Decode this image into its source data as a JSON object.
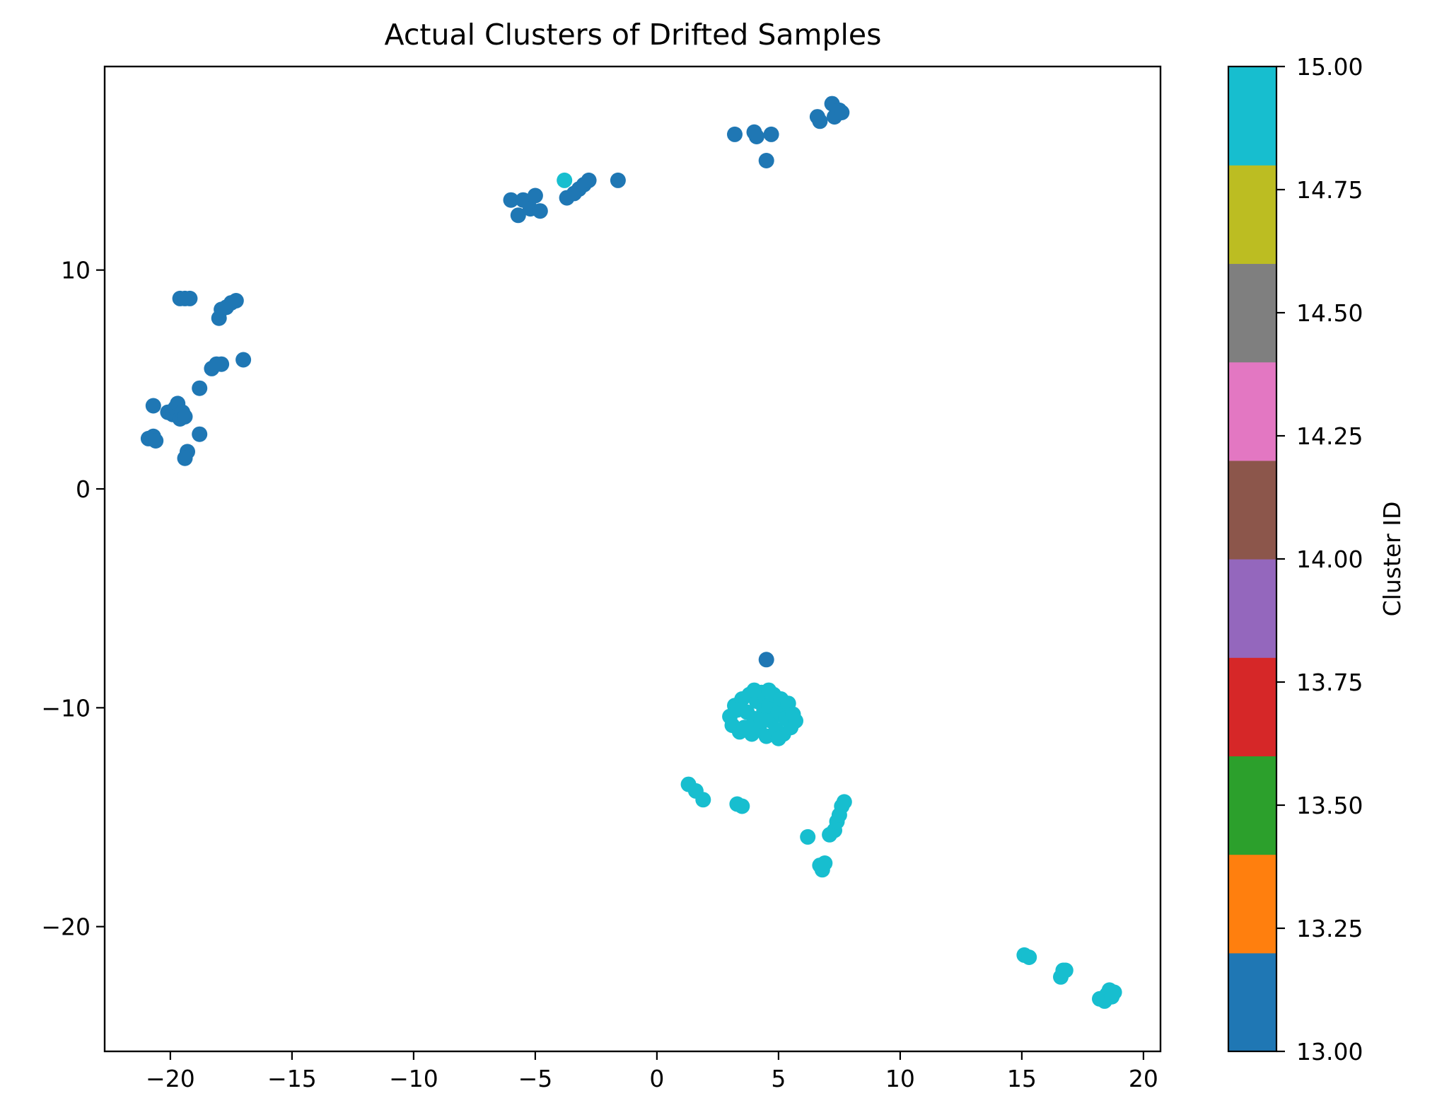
{
  "chart_data": {
    "type": "scatter",
    "title": "Actual Clusters of Drifted Samples",
    "xlabel": "",
    "ylabel": "",
    "xlim": [
      -22.7,
      20.7
    ],
    "ylim": [
      -25.7,
      19.3
    ],
    "xticks": [
      -20,
      -15,
      -10,
      -5,
      0,
      5,
      10,
      15,
      20
    ],
    "xtick_labels": [
      "−20",
      "−15",
      "−10",
      "−5",
      "0",
      "5",
      "10",
      "15",
      "20"
    ],
    "yticks": [
      -20,
      -10,
      0,
      10
    ],
    "ytick_labels": [
      "−20",
      "−10",
      "0",
      "10"
    ],
    "grid": false,
    "colorbar": {
      "label": "Cluster ID",
      "range": [
        13.0,
        15.0
      ],
      "colormap": "tab10",
      "colors": [
        "#1f77b4",
        "#ff7f0e",
        "#2ca02c",
        "#d62728",
        "#9467bd",
        "#8c564b",
        "#e377c2",
        "#7f7f7f",
        "#bcbd22",
        "#17becf"
      ],
      "ticks": [
        13.0,
        13.25,
        13.5,
        13.75,
        14.0,
        14.25,
        14.5,
        14.75,
        15.0
      ],
      "tick_labels": [
        "13.00",
        "13.25",
        "13.50",
        "13.75",
        "14.00",
        "14.25",
        "14.50",
        "14.75",
        "15.00"
      ]
    },
    "points": [
      {
        "x": -20.9,
        "y": 2.3,
        "c": 13
      },
      {
        "x": -20.7,
        "y": 2.4,
        "c": 13
      },
      {
        "x": -20.6,
        "y": 2.2,
        "c": 13
      },
      {
        "x": -20.7,
        "y": 3.8,
        "c": 13
      },
      {
        "x": -20.1,
        "y": 3.5,
        "c": 13
      },
      {
        "x": -19.9,
        "y": 3.4,
        "c": 13
      },
      {
        "x": -19.8,
        "y": 3.7,
        "c": 13
      },
      {
        "x": -19.7,
        "y": 3.9,
        "c": 13
      },
      {
        "x": -19.6,
        "y": 3.2,
        "c": 13
      },
      {
        "x": -19.5,
        "y": 3.5,
        "c": 13
      },
      {
        "x": -19.4,
        "y": 3.3,
        "c": 13
      },
      {
        "x": -19.3,
        "y": 1.7,
        "c": 13
      },
      {
        "x": -19.4,
        "y": 1.4,
        "c": 13
      },
      {
        "x": -18.8,
        "y": 2.5,
        "c": 13
      },
      {
        "x": -18.8,
        "y": 4.6,
        "c": 13
      },
      {
        "x": -19.6,
        "y": 8.7,
        "c": 13
      },
      {
        "x": -19.4,
        "y": 8.7,
        "c": 13
      },
      {
        "x": -19.2,
        "y": 8.7,
        "c": 13
      },
      {
        "x": -18.0,
        "y": 7.8,
        "c": 13
      },
      {
        "x": -17.9,
        "y": 8.2,
        "c": 13
      },
      {
        "x": -17.7,
        "y": 8.3,
        "c": 13
      },
      {
        "x": -17.5,
        "y": 8.5,
        "c": 13
      },
      {
        "x": -17.3,
        "y": 8.6,
        "c": 13
      },
      {
        "x": -18.3,
        "y": 5.5,
        "c": 13
      },
      {
        "x": -18.1,
        "y": 5.7,
        "c": 13
      },
      {
        "x": -17.9,
        "y": 5.7,
        "c": 13
      },
      {
        "x": -17.0,
        "y": 5.9,
        "c": 13
      },
      {
        "x": -6.0,
        "y": 13.2,
        "c": 13
      },
      {
        "x": -5.7,
        "y": 12.5,
        "c": 13
      },
      {
        "x": -5.5,
        "y": 13.2,
        "c": 13
      },
      {
        "x": -5.2,
        "y": 12.8,
        "c": 13
      },
      {
        "x": -5.0,
        "y": 13.4,
        "c": 13
      },
      {
        "x": -4.8,
        "y": 12.7,
        "c": 13
      },
      {
        "x": -3.7,
        "y": 13.3,
        "c": 13
      },
      {
        "x": -3.4,
        "y": 13.5,
        "c": 13
      },
      {
        "x": -3.2,
        "y": 13.7,
        "c": 13
      },
      {
        "x": -3.0,
        "y": 13.9,
        "c": 13
      },
      {
        "x": -2.8,
        "y": 14.1,
        "c": 13
      },
      {
        "x": -1.6,
        "y": 14.1,
        "c": 13
      },
      {
        "x": -3.8,
        "y": 14.1,
        "c": 15
      },
      {
        "x": 3.2,
        "y": 16.2,
        "c": 13
      },
      {
        "x": 4.0,
        "y": 16.3,
        "c": 13
      },
      {
        "x": 4.1,
        "y": 16.1,
        "c": 13
      },
      {
        "x": 4.7,
        "y": 16.2,
        "c": 13
      },
      {
        "x": 4.5,
        "y": 15.0,
        "c": 13
      },
      {
        "x": 6.6,
        "y": 17.0,
        "c": 13
      },
      {
        "x": 6.7,
        "y": 16.8,
        "c": 13
      },
      {
        "x": 7.2,
        "y": 17.6,
        "c": 13
      },
      {
        "x": 7.3,
        "y": 17.0,
        "c": 13
      },
      {
        "x": 7.5,
        "y": 17.3,
        "c": 13
      },
      {
        "x": 7.6,
        "y": 17.2,
        "c": 13
      },
      {
        "x": 4.5,
        "y": -7.8,
        "c": 13
      },
      {
        "x": 3.0,
        "y": -10.4,
        "c": 15
      },
      {
        "x": 3.1,
        "y": -10.8,
        "c": 15
      },
      {
        "x": 3.2,
        "y": -9.9,
        "c": 15
      },
      {
        "x": 3.4,
        "y": -11.1,
        "c": 15
      },
      {
        "x": 3.5,
        "y": -9.6,
        "c": 15
      },
      {
        "x": 3.7,
        "y": -10.2,
        "c": 15
      },
      {
        "x": 3.8,
        "y": -9.4,
        "c": 15
      },
      {
        "x": 3.9,
        "y": -11.2,
        "c": 15
      },
      {
        "x": 4.0,
        "y": -10.5,
        "c": 15
      },
      {
        "x": 4.1,
        "y": -9.7,
        "c": 15
      },
      {
        "x": 4.2,
        "y": -10.9,
        "c": 15
      },
      {
        "x": 4.3,
        "y": -9.3,
        "c": 15
      },
      {
        "x": 4.4,
        "y": -10.1,
        "c": 15
      },
      {
        "x": 4.5,
        "y": -11.3,
        "c": 15
      },
      {
        "x": 4.6,
        "y": -9.9,
        "c": 15
      },
      {
        "x": 4.7,
        "y": -10.6,
        "c": 15
      },
      {
        "x": 4.8,
        "y": -9.4,
        "c": 15
      },
      {
        "x": 4.9,
        "y": -11.0,
        "c": 15
      },
      {
        "x": 5.0,
        "y": -10.2,
        "c": 15
      },
      {
        "x": 5.1,
        "y": -9.6,
        "c": 15
      },
      {
        "x": 5.2,
        "y": -11.2,
        "c": 15
      },
      {
        "x": 5.3,
        "y": -10.5,
        "c": 15
      },
      {
        "x": 5.4,
        "y": -9.8,
        "c": 15
      },
      {
        "x": 5.5,
        "y": -10.9,
        "c": 15
      },
      {
        "x": 5.6,
        "y": -10.3,
        "c": 15
      },
      {
        "x": 5.7,
        "y": -10.6,
        "c": 15
      },
      {
        "x": 3.6,
        "y": -10.9,
        "c": 15
      },
      {
        "x": 4.0,
        "y": -9.2,
        "c": 15
      },
      {
        "x": 4.6,
        "y": -9.2,
        "c": 15
      },
      {
        "x": 5.0,
        "y": -11.4,
        "c": 15
      },
      {
        "x": 3.3,
        "y": -10.1,
        "c": 15
      },
      {
        "x": 4.3,
        "y": -10.6,
        "c": 15
      },
      {
        "x": 1.3,
        "y": -13.5,
        "c": 15
      },
      {
        "x": 1.6,
        "y": -13.8,
        "c": 15
      },
      {
        "x": 1.9,
        "y": -14.2,
        "c": 15
      },
      {
        "x": 3.3,
        "y": -14.4,
        "c": 15
      },
      {
        "x": 3.5,
        "y": -14.5,
        "c": 15
      },
      {
        "x": 6.2,
        "y": -15.9,
        "c": 15
      },
      {
        "x": 6.7,
        "y": -17.2,
        "c": 15
      },
      {
        "x": 6.8,
        "y": -17.4,
        "c": 15
      },
      {
        "x": 6.9,
        "y": -17.1,
        "c": 15
      },
      {
        "x": 7.1,
        "y": -15.8,
        "c": 15
      },
      {
        "x": 7.3,
        "y": -15.6,
        "c": 15
      },
      {
        "x": 7.4,
        "y": -15.2,
        "c": 15
      },
      {
        "x": 7.5,
        "y": -14.9,
        "c": 15
      },
      {
        "x": 7.6,
        "y": -14.5,
        "c": 15
      },
      {
        "x": 7.7,
        "y": -14.3,
        "c": 15
      },
      {
        "x": 15.1,
        "y": -21.3,
        "c": 15
      },
      {
        "x": 15.3,
        "y": -21.4,
        "c": 15
      },
      {
        "x": 16.6,
        "y": -22.3,
        "c": 15
      },
      {
        "x": 16.7,
        "y": -22.0,
        "c": 15
      },
      {
        "x": 16.8,
        "y": -22.0,
        "c": 15
      },
      {
        "x": 18.2,
        "y": -23.3,
        "c": 15
      },
      {
        "x": 18.4,
        "y": -23.4,
        "c": 15
      },
      {
        "x": 18.5,
        "y": -23.1,
        "c": 15
      },
      {
        "x": 18.6,
        "y": -22.9,
        "c": 15
      },
      {
        "x": 18.7,
        "y": -23.2,
        "c": 15
      },
      {
        "x": 18.8,
        "y": -23.0,
        "c": 15
      }
    ]
  }
}
